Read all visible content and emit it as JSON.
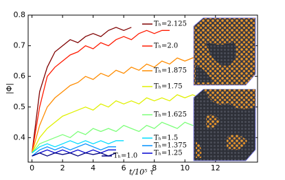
{
  "chart_data": {
    "type": "line",
    "xlabel": "t/10⁵ τ",
    "ylabel": "|Φ|",
    "x": [
      0,
      0.5,
      1,
      1.5,
      2,
      2.5,
      3,
      3.5,
      4,
      4.5,
      5,
      5.5,
      6,
      6.5,
      7,
      7.5,
      8,
      8.5,
      9,
      9.5,
      10,
      10.5,
      11
    ],
    "xlim": [
      -0.25,
      14.75
    ],
    "xticks": [
      0,
      2,
      4,
      6,
      8,
      10,
      12
    ],
    "ylim": [
      0.32,
      0.8
    ],
    "yticks": [
      0.4,
      0.5,
      0.6,
      0.7,
      0.8
    ],
    "grid": false,
    "series": [
      {
        "name": "Tₕ=2.125",
        "color": "#7f0000",
        "values": [
          0.35,
          0.55,
          0.63,
          0.68,
          0.7,
          0.72,
          0.71,
          0.73,
          0.74,
          0.73,
          0.75,
          0.76,
          0.75,
          0.76,
          null,
          null,
          null,
          null,
          null,
          null,
          null,
          null,
          null
        ]
      },
      {
        "name": "Tₕ=2.0",
        "color": "#ff1a00",
        "values": [
          0.35,
          0.5,
          0.6,
          0.63,
          0.65,
          0.67,
          0.68,
          0.7,
          0.69,
          0.71,
          0.7,
          0.72,
          0.73,
          0.72,
          0.74,
          0.75,
          0.74,
          0.75,
          0.75,
          null,
          null,
          null,
          null
        ]
      },
      {
        "name": "Tₕ=1.875",
        "color": "#ff8c00",
        "values": [
          0.35,
          0.44,
          0.5,
          0.53,
          0.55,
          0.57,
          0.58,
          0.6,
          0.59,
          0.61,
          0.6,
          0.62,
          0.61,
          0.63,
          0.62,
          0.64,
          0.63,
          0.65,
          0.64,
          0.66,
          0.65,
          0.66,
          0.67
        ]
      },
      {
        "name": "Tₕ=1.75",
        "color": "#e0f000",
        "values": [
          0.35,
          0.4,
          0.43,
          0.45,
          0.47,
          0.48,
          0.49,
          0.5,
          0.49,
          0.51,
          0.5,
          0.52,
          0.51,
          0.52,
          0.51,
          0.53,
          0.52,
          0.53,
          0.52,
          0.54,
          0.53,
          0.54,
          0.53
        ]
      },
      {
        "name": "Tₕ=1.625",
        "color": "#7dff7a",
        "values": [
          0.35,
          0.38,
          0.39,
          0.4,
          0.41,
          0.4,
          0.42,
          0.41,
          0.43,
          0.42,
          0.43,
          0.42,
          0.44,
          0.43,
          0.42,
          0.44,
          0.43,
          0.45,
          0.44,
          0.43,
          0.45,
          0.44,
          0.44
        ]
      },
      {
        "name": "Tₕ=1.5",
        "color": "#00dcff",
        "values": [
          0.35,
          0.37,
          0.38,
          0.37,
          0.38,
          0.39,
          0.38,
          0.39,
          0.38,
          0.39,
          0.38,
          0.39,
          0.39,
          null,
          null,
          null,
          null,
          null,
          null,
          null,
          null,
          null,
          null
        ]
      },
      {
        "name": "Tₕ=1.375",
        "color": "#0090ff",
        "values": [
          0.34,
          0.36,
          0.37,
          0.36,
          0.37,
          0.36,
          0.37,
          0.38,
          0.37,
          0.36,
          0.37,
          0.37,
          null,
          null,
          null,
          null,
          null,
          null,
          null,
          null,
          null,
          null,
          null
        ]
      },
      {
        "name": "Tₕ=1.25",
        "color": "#0000d0",
        "values": [
          0.34,
          0.35,
          0.36,
          0.35,
          0.36,
          0.35,
          0.36,
          0.35,
          0.36,
          0.35,
          0.36,
          0.36,
          null,
          null,
          null,
          null,
          null,
          null,
          null,
          null,
          null,
          null,
          null
        ]
      },
      {
        "name": "Tₕ=1.0",
        "color": "#000080",
        "values": [
          0.34,
          0.35,
          0.34,
          0.35,
          0.345,
          0.35,
          0.34,
          0.35,
          0.345,
          0.35,
          0.34,
          0.35,
          null,
          null,
          null,
          null,
          null,
          null,
          null,
          null,
          null,
          null,
          null
        ]
      }
    ]
  }
}
